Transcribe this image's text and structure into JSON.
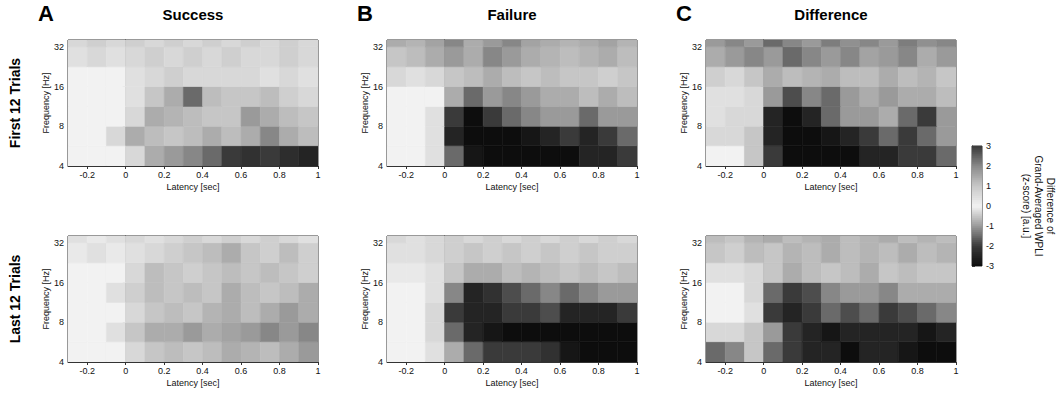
{
  "chart_data": {
    "type": "heatmap",
    "columns": [
      {
        "letter": "A",
        "title": "Success"
      },
      {
        "letter": "B",
        "title": "Failure"
      },
      {
        "letter": "C",
        "title": "Difference"
      }
    ],
    "rows": [
      "First 12 Trials",
      "Last 12 Trials"
    ],
    "x_label": "Latency [sec]",
    "y_label": "Frequency [Hz]",
    "xlim": [
      -0.3,
      1
    ],
    "xticks": [
      -0.2,
      0,
      0.2,
      0.4,
      0.6,
      0.8,
      1
    ],
    "ylim": [
      4,
      36
    ],
    "yticks": [
      4,
      8,
      16,
      32
    ],
    "log": "y",
    "x_edges": [
      -0.3,
      -0.2,
      -0.1,
      0,
      0.1,
      0.2,
      0.3,
      0.4,
      0.5,
      0.6,
      0.7,
      0.8,
      0.9,
      1
    ],
    "y_edges": [
      4,
      5.7,
      8,
      11.3,
      16,
      22.6,
      32,
      36
    ],
    "panels": [
      [
        [
          [
            0,
            0,
            0,
            -0.3,
            -0.8,
            -1,
            -1.2,
            -1.5,
            -2,
            -2.2,
            -2,
            -2.3,
            -2.5
          ],
          [
            0,
            0,
            -0.3,
            -0.8,
            -0.6,
            -0.5,
            -0.6,
            -0.8,
            -0.6,
            -0.8,
            -1.2,
            -0.8,
            -0.6
          ],
          [
            0,
            0,
            0,
            -0.3,
            -0.8,
            -0.7,
            -0.6,
            -0.5,
            -0.5,
            -1,
            -0.8,
            -0.6,
            -0.5
          ],
          [
            0,
            0,
            0,
            -0.2,
            -0.5,
            -0.8,
            -1.5,
            -0.6,
            -0.5,
            -0.5,
            -0.6,
            -0.4,
            -0.3
          ],
          [
            0,
            0,
            0,
            -0.2,
            -0.3,
            -0.4,
            -0.3,
            -0.3,
            -0.3,
            -0.3,
            -0.2,
            -0.3,
            -0.2
          ],
          [
            -0.2,
            -0.3,
            -0.2,
            -0.3,
            -0.4,
            -0.3,
            -0.4,
            -0.3,
            -0.4,
            -0.3,
            -0.3,
            -0.4,
            -0.3
          ],
          [
            -0.3,
            -0.4,
            -0.3,
            -0.4,
            -0.3,
            -0.4,
            -0.3,
            -0.4,
            -0.3,
            -0.4,
            -0.3,
            -0.4,
            -0.3
          ]
        ],
        [
          [
            0,
            0,
            -0.2,
            -1.5,
            -2.8,
            -3,
            -3,
            -3,
            -3,
            -3,
            -2.5,
            -2.5,
            -2
          ],
          [
            0,
            0,
            -0.2,
            -2.5,
            -3,
            -3,
            -3,
            -2.8,
            -2.5,
            -2,
            -2.5,
            -2,
            -1.5
          ],
          [
            0,
            0,
            -0.2,
            -2,
            -3,
            -2,
            -1.5,
            -1.2,
            -1,
            -1,
            -1.5,
            -1,
            -1
          ],
          [
            0,
            0,
            0,
            -0.8,
            -1.5,
            -1,
            -1.2,
            -1,
            -0.8,
            -0.8,
            -0.6,
            -0.8,
            -0.6
          ],
          [
            -0.3,
            -0.2,
            -0.3,
            -0.5,
            -0.6,
            -0.8,
            -0.6,
            -0.5,
            -0.6,
            -0.5,
            -0.5,
            -0.4,
            -0.5
          ],
          [
            -0.5,
            -0.6,
            -0.8,
            -1,
            -0.8,
            -1.2,
            -1,
            -0.8,
            -0.7,
            -0.6,
            -0.7,
            -0.8,
            -0.6
          ],
          [
            -0.8,
            -0.7,
            -0.9,
            -1.2,
            -0.8,
            -1,
            -1.2,
            -0.9,
            -0.8,
            -0.7,
            -0.8,
            -0.9,
            -0.7
          ]
        ],
        [
          [
            0,
            0,
            -0.5,
            -2,
            -3,
            -3,
            -3,
            -3,
            -2.5,
            -2.5,
            -2,
            -2,
            -1.5
          ],
          [
            -0.3,
            -0.3,
            -0.5,
            -2.5,
            -3,
            -3,
            -2.8,
            -2.5,
            -2,
            -1.5,
            -2,
            -1.5,
            -1
          ],
          [
            -0.2,
            -0.3,
            -0.3,
            -2.5,
            -3,
            -2.5,
            -1.5,
            -1,
            -1,
            -0.8,
            -1.5,
            -2,
            -1
          ],
          [
            -0.2,
            -0.2,
            -0.3,
            -1,
            -1.8,
            -1.2,
            -1.5,
            -1,
            -0.8,
            -1,
            -0.8,
            -0.8,
            -0.6
          ],
          [
            -0.4,
            -0.3,
            -0.5,
            -0.8,
            -0.6,
            -0.7,
            -0.8,
            -0.6,
            -0.6,
            -0.8,
            -0.6,
            -0.7,
            -0.5
          ],
          [
            -0.8,
            -1,
            -1.2,
            -1,
            -1.5,
            -1.2,
            -1,
            -1.2,
            -0.9,
            -1,
            -1.2,
            -0.8,
            -1
          ],
          [
            -1,
            -1.2,
            -1,
            -1.5,
            -1.2,
            -1,
            -1.3,
            -1.1,
            -1.2,
            -1,
            -1.3,
            -1.1,
            -1.2
          ]
        ]
      ],
      [
        [
          [
            0,
            0,
            0,
            -0.3,
            -0.5,
            -0.6,
            -0.5,
            -0.6,
            -0.8,
            -0.7,
            -0.6,
            -0.8,
            -1
          ],
          [
            0,
            0,
            -0.2,
            -0.5,
            -0.8,
            -0.8,
            -1,
            -0.8,
            -0.9,
            -1,
            -1.2,
            -1,
            -1.2
          ],
          [
            0,
            0,
            0,
            -0.3,
            -0.5,
            -0.6,
            -0.5,
            -0.7,
            -0.8,
            -0.6,
            -0.8,
            -1,
            -0.8
          ],
          [
            0,
            0,
            -0.2,
            -0.4,
            -0.6,
            -0.5,
            -0.6,
            -0.5,
            -0.8,
            -0.6,
            -0.5,
            -0.6,
            -0.8
          ],
          [
            0,
            0,
            0,
            -0.3,
            -0.6,
            -0.5,
            -0.4,
            -0.5,
            -0.6,
            -0.5,
            -0.6,
            -0.5,
            -0.4
          ],
          [
            -0.1,
            -0.2,
            -0.1,
            -0.2,
            -0.3,
            -0.4,
            -0.5,
            -0.6,
            -0.8,
            -0.5,
            -0.4,
            -0.6,
            -0.4
          ],
          [
            -0.2,
            -0.1,
            -0.2,
            -0.3,
            -0.2,
            -0.3,
            -0.4,
            -0.3,
            -0.4,
            -0.3,
            -0.4,
            -0.3,
            -0.2
          ]
        ],
        [
          [
            0,
            0,
            -0.2,
            -0.8,
            -1.5,
            -2,
            -2,
            -2,
            -2.2,
            -2.8,
            -3,
            -3,
            -3
          ],
          [
            0,
            0,
            -0.3,
            -1.5,
            -2.5,
            -2.8,
            -3,
            -3,
            -3,
            -3,
            -3,
            -3,
            -3
          ],
          [
            0,
            0,
            -0.3,
            -2,
            -2.5,
            -2.5,
            -2,
            -2,
            -1.8,
            -2.5,
            -2.5,
            -2.5,
            -2
          ],
          [
            0,
            0,
            -0.2,
            -1.2,
            -2.5,
            -2.2,
            -1.8,
            -1.5,
            -1.2,
            -1.5,
            -1.2,
            -1,
            -1
          ],
          [
            -0.1,
            -0.1,
            -0.2,
            -0.5,
            -0.8,
            -0.8,
            -0.6,
            -0.7,
            -0.6,
            -0.5,
            -0.6,
            -0.5,
            -0.6
          ],
          [
            -0.2,
            -0.2,
            -0.3,
            -0.4,
            -0.5,
            -0.4,
            -0.5,
            -0.4,
            -0.5,
            -0.4,
            -0.5,
            -0.4,
            -0.4
          ],
          [
            -0.3,
            -0.2,
            -0.3,
            -0.4,
            -0.3,
            -0.4,
            -0.3,
            -0.4,
            -0.3,
            -0.4,
            -0.3,
            -0.4,
            -0.3
          ]
        ],
        [
          [
            -1.5,
            -1.2,
            -0.5,
            -1.5,
            -2,
            -2.5,
            -2.5,
            -3,
            -2.5,
            -2.5,
            -2.8,
            -3,
            -3
          ],
          [
            -0.3,
            -0.3,
            -0.5,
            -1,
            -2,
            -2.5,
            -2.8,
            -2.5,
            -2.5,
            -2.5,
            -2.5,
            -2.8,
            -2.5
          ],
          [
            0,
            0,
            -0.2,
            -2,
            -2.5,
            -2,
            -1.5,
            -1.8,
            -1.5,
            -2,
            -1.8,
            -1.5,
            -1.2
          ],
          [
            0,
            0,
            -0.3,
            -1.5,
            -2,
            -1.8,
            -1.2,
            -1,
            -1,
            -1.2,
            -0.8,
            -0.8,
            -0.8
          ],
          [
            -0.2,
            -0.2,
            -0.3,
            -0.5,
            -0.8,
            -0.6,
            -0.5,
            -0.6,
            -0.8,
            -0.5,
            -0.6,
            -0.5,
            -0.5
          ],
          [
            -0.5,
            -0.4,
            -0.6,
            -0.5,
            -0.7,
            -0.6,
            -0.8,
            -0.6,
            -0.7,
            -0.6,
            -0.8,
            -0.6,
            -0.7
          ],
          [
            -0.6,
            -0.5,
            -0.7,
            -0.8,
            -0.6,
            -0.7,
            -0.8,
            -0.6,
            -0.7,
            -0.8,
            -0.6,
            -0.7,
            -0.6
          ]
        ]
      ]
    ],
    "colorbar": {
      "label": "Difference of Grand-Averaged WPLI (z-score) [a.u.]",
      "range": [
        -3,
        3
      ],
      "ticks": [
        -3,
        -2,
        -1,
        0,
        1,
        2,
        3
      ]
    }
  }
}
